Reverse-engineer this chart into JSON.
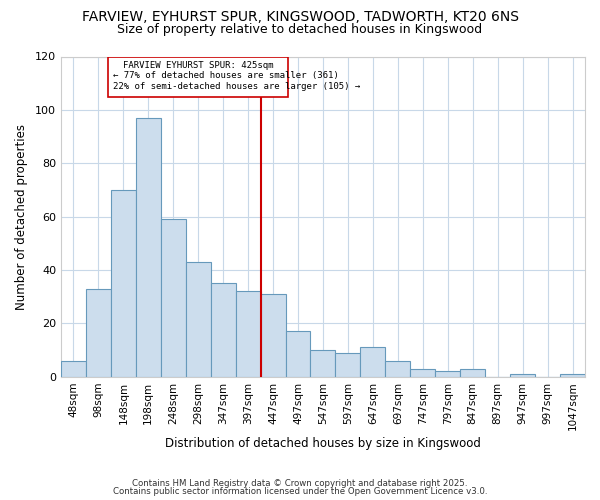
{
  "title_line1": "FARVIEW, EYHURST SPUR, KINGSWOOD, TADWORTH, KT20 6NS",
  "title_line2": "Size of property relative to detached houses in Kingswood",
  "xlabel": "Distribution of detached houses by size in Kingswood",
  "ylabel": "Number of detached properties",
  "bar_labels": [
    "48sqm",
    "98sqm",
    "148sqm",
    "198sqm",
    "248sqm",
    "298sqm",
    "347sqm",
    "397sqm",
    "447sqm",
    "497sqm",
    "547sqm",
    "597sqm",
    "647sqm",
    "697sqm",
    "747sqm",
    "797sqm",
    "847sqm",
    "897sqm",
    "947sqm",
    "997sqm",
    "1047sqm"
  ],
  "bar_values": [
    6,
    33,
    70,
    97,
    59,
    43,
    35,
    32,
    31,
    17,
    10,
    9,
    11,
    6,
    3,
    2,
    3,
    0,
    1,
    0,
    1
  ],
  "bar_color": "#ccdded",
  "bar_edge_color": "#6699bb",
  "vline_color": "#cc0000",
  "annotation_title": "FARVIEW EYHURST SPUR: 425sqm",
  "annotation_line2": "← 77% of detached houses are smaller (361)",
  "annotation_line3": "22% of semi-detached houses are larger (105) →",
  "annotation_box_color": "#cc0000",
  "ylim": [
    0,
    120
  ],
  "yticks": [
    0,
    20,
    40,
    60,
    80,
    100,
    120
  ],
  "background_color": "#ffffff",
  "grid_color": "#c8d8e8",
  "footer_line1": "Contains HM Land Registry data © Crown copyright and database right 2025.",
  "footer_line2": "Contains public sector information licensed under the Open Government Licence v3.0."
}
